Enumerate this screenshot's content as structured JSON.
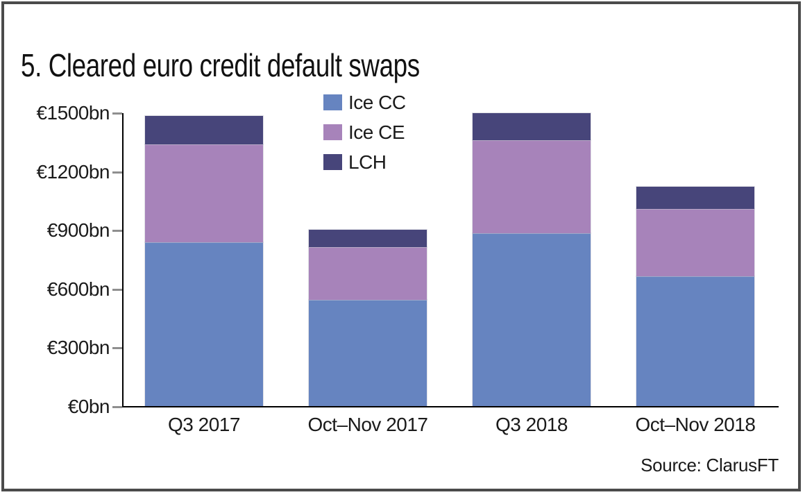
{
  "chart_data": {
    "type": "bar",
    "stacked": true,
    "title": "5. Cleared euro credit default swaps",
    "categories": [
      "Q3 2017",
      "Oct–Nov 2017",
      "Q3 2018",
      "Oct–Nov 2018"
    ],
    "series": [
      {
        "name": "Ice CC",
        "color": "#6684c0",
        "values": [
          840,
          545,
          885,
          665
        ]
      },
      {
        "name": "Ice CE",
        "color": "#a783ba",
        "values": [
          500,
          270,
          475,
          345
        ]
      },
      {
        "name": "LCH",
        "color": "#47457a",
        "values": [
          145,
          90,
          140,
          115
        ]
      }
    ],
    "units": "€bn",
    "ylim": [
      0,
      1500
    ],
    "yticks": [
      0,
      300,
      600,
      900,
      1200,
      1500
    ],
    "ytick_labels": [
      "€0bn",
      "€300bn",
      "€600bn",
      "€900bn",
      "€1200bn",
      "€1500bn"
    ],
    "legend_position": "top-center-inside",
    "grid": false,
    "source": "Source: ClarusFT"
  },
  "colors": {
    "background": "#ffffff",
    "frame_border": "#4b4b4b",
    "axis": "#000000",
    "tick": "#8f8f8f",
    "text": "#1a1a1a"
  }
}
